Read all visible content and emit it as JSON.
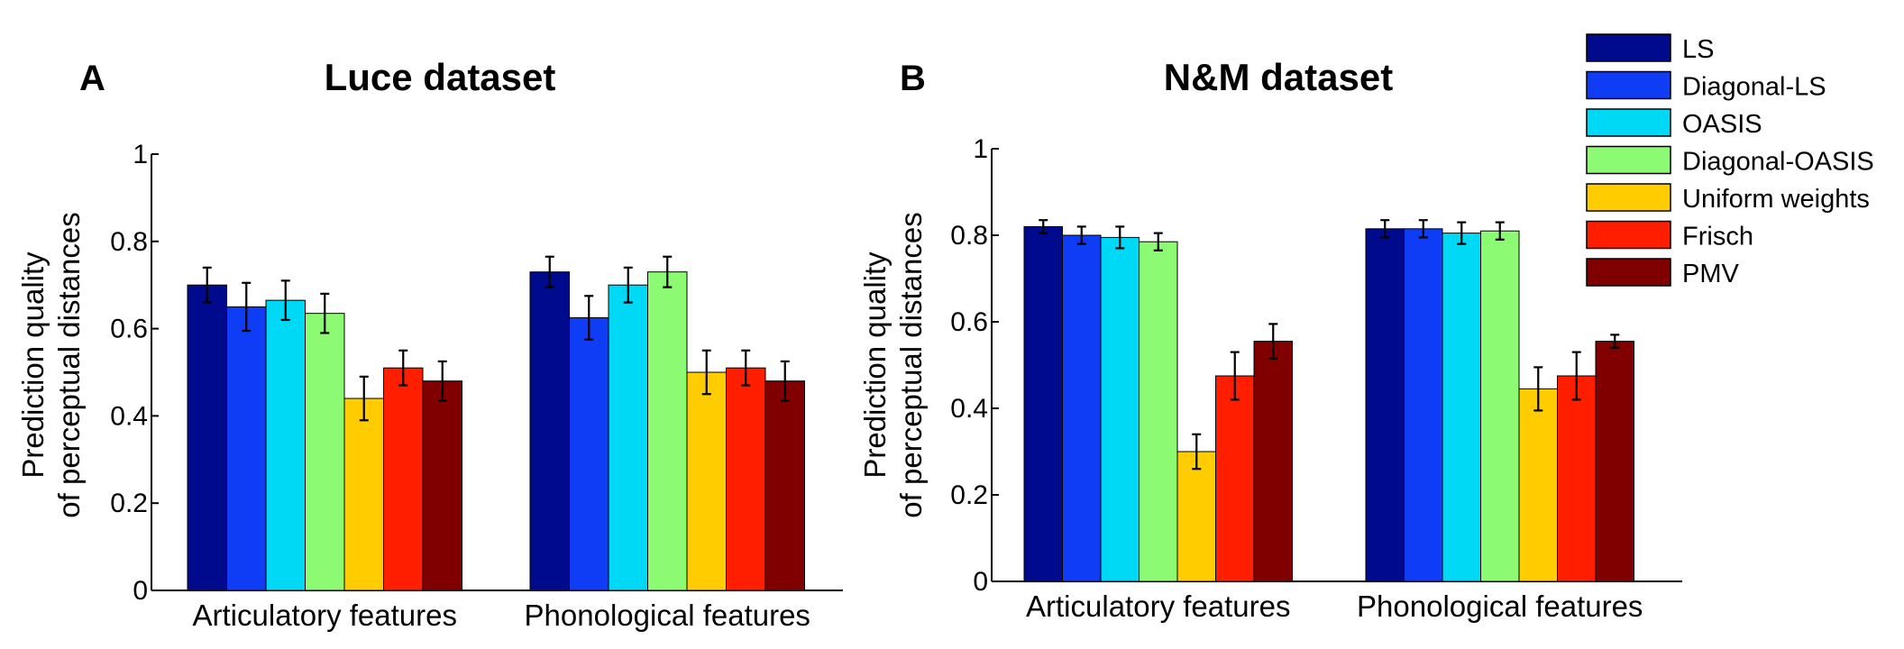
{
  "chart_data": [
    {
      "panel": "A",
      "title": "Luce dataset",
      "type": "bar",
      "ylabel_lines": [
        "Prediction quality",
        "of perceptual distances"
      ],
      "xlabel": "",
      "ylim": [
        0,
        1
      ],
      "yticks": [
        0,
        0.2,
        0.4,
        0.6,
        0.8,
        1
      ],
      "ytick_labels": [
        "0",
        "0.2",
        "0.4",
        "0.6",
        "0.8",
        "1"
      ],
      "categories": [
        "Articulatory features",
        "Phonological features"
      ],
      "series": [
        {
          "name": "LS",
          "values": [
            0.7,
            0.73
          ],
          "errors": [
            0.04,
            0.035
          ]
        },
        {
          "name": "Diagonal-LS",
          "values": [
            0.65,
            0.625
          ],
          "errors": [
            0.055,
            0.05
          ]
        },
        {
          "name": "OASIS",
          "values": [
            0.665,
            0.7
          ],
          "errors": [
            0.045,
            0.04
          ]
        },
        {
          "name": "Diagonal-OASIS",
          "values": [
            0.635,
            0.73
          ],
          "errors": [
            0.045,
            0.035
          ]
        },
        {
          "name": "Uniform weights",
          "values": [
            0.44,
            0.5
          ],
          "errors": [
            0.05,
            0.05
          ]
        },
        {
          "name": "Frisch",
          "values": [
            0.51,
            0.51
          ],
          "errors": [
            0.04,
            0.04
          ]
        },
        {
          "name": "PMV",
          "values": [
            0.48,
            0.48
          ],
          "errors": [
            0.045,
            0.045
          ]
        }
      ]
    },
    {
      "panel": "B",
      "title": "N&M dataset",
      "type": "bar",
      "ylabel_lines": [
        "Prediction quality",
        "of perceptual distances"
      ],
      "xlabel": "",
      "ylim": [
        0,
        1
      ],
      "yticks": [
        0,
        0.2,
        0.4,
        0.6,
        0.8,
        1
      ],
      "ytick_labels": [
        "0",
        "0.2",
        "0.4",
        "0.6",
        "0.8",
        "1"
      ],
      "categories": [
        "Articulatory features",
        "Phonological features"
      ],
      "series": [
        {
          "name": "LS",
          "values": [
            0.82,
            0.815
          ],
          "errors": [
            0.015,
            0.02
          ]
        },
        {
          "name": "Diagonal-LS",
          "values": [
            0.8,
            0.815
          ],
          "errors": [
            0.02,
            0.02
          ]
        },
        {
          "name": "OASIS",
          "values": [
            0.795,
            0.805
          ],
          "errors": [
            0.025,
            0.025
          ]
        },
        {
          "name": "Diagonal-OASIS",
          "values": [
            0.785,
            0.81
          ],
          "errors": [
            0.02,
            0.02
          ]
        },
        {
          "name": "Uniform weights",
          "values": [
            0.3,
            0.445
          ],
          "errors": [
            0.04,
            0.05
          ]
        },
        {
          "name": "Frisch",
          "values": [
            0.475,
            0.475
          ],
          "errors": [
            0.055,
            0.055
          ]
        },
        {
          "name": "PMV",
          "values": [
            0.555,
            0.555
          ],
          "errors": [
            0.04,
            0.015
          ]
        }
      ]
    }
  ],
  "legend": {
    "items": [
      {
        "name": "LS",
        "color": "#000a8c"
      },
      {
        "name": "Diagonal-LS",
        "color": "#0f3df5"
      },
      {
        "name": "OASIS",
        "color": "#00d9f5"
      },
      {
        "name": "Diagonal-OASIS",
        "color": "#8cfb73"
      },
      {
        "name": "Uniform weights",
        "color": "#ffcc00"
      },
      {
        "name": "Frisch",
        "color": "#ff1f00"
      },
      {
        "name": "PMV",
        "color": "#800000"
      }
    ]
  }
}
